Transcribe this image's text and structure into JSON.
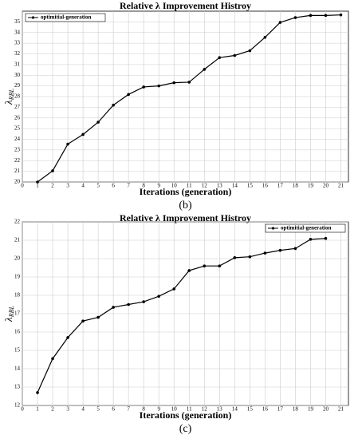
{
  "chart_data": [
    {
      "type": "line",
      "title": "Relative λ Improvement Histroy",
      "xlabel": "Iterations (generation)",
      "ylabel": "λ",
      "ylabel_subscript": "RBL",
      "caption": "(b)",
      "x": [
        1,
        2,
        3,
        4,
        5,
        6,
        7,
        8,
        9,
        10,
        11,
        12,
        13,
        14,
        15,
        16,
        17,
        18,
        19,
        20,
        21
      ],
      "series": [
        {
          "name": "optimitial-generation",
          "color": "#000000",
          "values": [
            20.0,
            21.05,
            23.55,
            24.45,
            25.6,
            27.2,
            28.2,
            28.9,
            29.0,
            29.3,
            29.35,
            30.55,
            31.65,
            31.85,
            32.3,
            33.55,
            34.95,
            35.4,
            35.6,
            35.6,
            35.65
          ]
        }
      ],
      "xlim": [
        0,
        21.5
      ],
      "xticks": [
        0,
        1,
        2,
        3,
        4,
        5,
        6,
        7,
        8,
        9,
        10,
        11,
        12,
        13,
        14,
        15,
        16,
        17,
        18,
        19,
        20,
        21
      ],
      "ylim": [
        20,
        36
      ],
      "yticks": [
        20,
        21,
        22,
        23,
        24,
        25,
        26,
        27,
        28,
        29,
        30,
        31,
        32,
        33,
        34,
        35
      ],
      "grid": true,
      "legend": "upper left"
    },
    {
      "type": "line",
      "title": "Relative λ Improvement Histroy",
      "xlabel": "Iterations (generation)",
      "ylabel": "λ",
      "ylabel_subscript": "RBL",
      "caption": "(c)",
      "x": [
        1,
        2,
        3,
        4,
        5,
        6,
        7,
        8,
        9,
        10,
        11,
        12,
        13,
        14,
        15,
        16,
        17,
        18,
        19,
        20
      ],
      "series": [
        {
          "name": "optimitial-generation",
          "color": "#000000",
          "values": [
            12.7,
            14.55,
            15.7,
            16.6,
            16.8,
            17.35,
            17.5,
            17.65,
            17.95,
            18.35,
            19.35,
            19.6,
            19.6,
            20.05,
            20.1,
            20.3,
            20.45,
            20.55,
            21.05,
            21.1
          ]
        }
      ],
      "xlim": [
        0,
        21.5
      ],
      "xticks": [
        0,
        1,
        2,
        3,
        4,
        5,
        6,
        7,
        8,
        9,
        10,
        11,
        12,
        13,
        14,
        15,
        16,
        17,
        18,
        19,
        20,
        21
      ],
      "ylim": [
        12,
        22
      ],
      "yticks": [
        12,
        13,
        14,
        15,
        16,
        17,
        18,
        19,
        20,
        21,
        22
      ],
      "grid": true,
      "legend": "upper right"
    }
  ]
}
